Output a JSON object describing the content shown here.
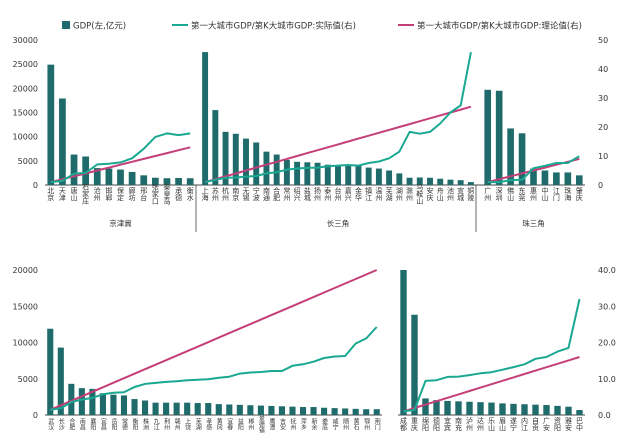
{
  "legend": [
    {
      "label": "GDP(左,亿元)",
      "color": "#1f6b6b",
      "kind": "bar"
    },
    {
      "label": "第一大城市GDP/第K大城市GDP:实际值(右)",
      "color": "#1aa892",
      "kind": "line"
    },
    {
      "label": "第一大城市GDP/第K大城市GDP:理论值(右)",
      "color": "#c43f78",
      "kind": "line"
    }
  ],
  "colors": {
    "bar": "#1f6b6b",
    "actual": "#1aa892",
    "theory": "#c43f78",
    "axis": "#444444",
    "text": "#333333"
  },
  "top_left_axis": {
    "ticks": [
      "0",
      "5000",
      "10000",
      "15000",
      "20000",
      "25000",
      "30000"
    ]
  },
  "top_right_axis": {
    "ticks": [
      "0",
      "10",
      "20",
      "30",
      "40",
      "50"
    ]
  },
  "bottom_left_axis": {
    "ticks": [
      "0",
      "5000",
      "10000",
      "15000",
      "20000"
    ]
  },
  "bottom_right_axis": {
    "ticks": [
      "0.0",
      "10.0",
      "20.0",
      "30.0",
      "40.0"
    ]
  },
  "chart_data": [
    {
      "type": "bar",
      "group": "京津冀",
      "categories": [
        "北京",
        "天津",
        "唐山",
        "石家庄",
        "沧州",
        "邯郸",
        "保定",
        "廊坊",
        "邢台",
        "张家口",
        "秦皇岛",
        "承德",
        "衡水"
      ],
      "ylim": [
        0,
        30000
      ],
      "y2lim": [
        0,
        50
      ],
      "series": [
        {
          "values": [
            24900,
            17900,
            6300,
            5900,
            3500,
            3400,
            3200,
            2700,
            2000,
            1500,
            1400,
            1450,
            1400
          ]
        },
        {
          "values": [
            1,
            1.4,
            3.9,
            4.2,
            7.1,
            7.3,
            7.8,
            9.2,
            12.5,
            16.6,
            17.8,
            17.2,
            17.8
          ]
        },
        {
          "values": [
            1,
            2,
            3,
            4,
            5,
            6,
            7,
            8,
            9,
            10,
            11,
            12,
            13
          ]
        }
      ]
    },
    {
      "type": "bar",
      "group": "长三角",
      "categories": [
        "上海",
        "苏州",
        "杭州",
        "南京",
        "无锡",
        "宁波",
        "南通",
        "合肥",
        "常州",
        "绍兴",
        "盐城",
        "扬州",
        "泰州",
        "台州",
        "嘉兴",
        "金华",
        "镇江",
        "温州",
        "芜湖",
        "湖州",
        "滁州",
        "马鞍山",
        "安庆",
        "舟山",
        "池州",
        "宣城",
        "铜陵"
      ],
      "ylim": [
        0,
        30000
      ],
      "y2lim": [
        0,
        50
      ],
      "series": [
        {
          "values": [
            27500,
            15500,
            11000,
            10600,
            9600,
            8800,
            6900,
            6300,
            5200,
            4800,
            4700,
            4600,
            4200,
            4100,
            4000,
            4100,
            3600,
            3400,
            3000,
            2400,
            1500,
            1550,
            1500,
            1300,
            1100,
            1000,
            600
          ]
        },
        {
          "values": [
            1,
            1.8,
            2.5,
            2.6,
            2.9,
            3.1,
            4,
            4.4,
            5.3,
            5.7,
            5.9,
            6,
            6.5,
            6.7,
            6.9,
            6.7,
            7.6,
            8.1,
            9.2,
            11.5,
            18.3,
            17.7,
            18.3,
            21.2,
            25,
            27.5,
            45.8
          ]
        },
        {
          "values": [
            1,
            2,
            3,
            4,
            5,
            6,
            7,
            8,
            9,
            10,
            11,
            12,
            13,
            14,
            15,
            16,
            17,
            18,
            19,
            20,
            21,
            22,
            23,
            24,
            25,
            26,
            27
          ]
        }
      ]
    },
    {
      "type": "bar",
      "group": "珠三角",
      "categories": [
        "广州",
        "深圳",
        "佛山",
        "东莞",
        "惠州",
        "中山",
        "江门",
        "珠海",
        "肇庆"
      ],
      "ylim": [
        0,
        30000
      ],
      "y2lim": [
        0,
        50
      ],
      "series": [
        {
          "values": [
            19700,
            19500,
            11700,
            10700,
            3400,
            3000,
            2600,
            2600,
            2000
          ]
        },
        {
          "values": [
            1,
            1.01,
            1.7,
            1.8,
            5.8,
            6.6,
            7.6,
            7.6,
            9.9
          ]
        },
        {
          "values": [
            1,
            2,
            3,
            4,
            5,
            6,
            7,
            8,
            9
          ]
        }
      ]
    },
    {
      "type": "bar",
      "categories": [
        "武汉",
        "长沙",
        "合肥",
        "南昌",
        "襄阳",
        "宜昌",
        "岳阳",
        "常德",
        "衡阳",
        "株洲",
        "九江",
        "荆州",
        "赣州",
        "上饶",
        "芜湖",
        "孝感",
        "黄冈",
        "宜春",
        "益阳",
        "郴州",
        "景德镇",
        "鹰潭",
        "吉安",
        "抚州",
        "萍乡",
        "新余",
        "娄底",
        "咸宁",
        "随州",
        "黄石",
        "鄂州",
        "荆门"
      ],
      "ylim": [
        0,
        20000
      ],
      "y2lim": [
        0,
        28
      ],
      "series": [
        {
          "values": [
            11900,
            9300,
            4300,
            3700,
            3600,
            3000,
            2800,
            2700,
            2200,
            2000,
            1700,
            1700,
            1700,
            1700,
            1650,
            1650,
            1500,
            1450,
            1400,
            1350,
            1300,
            1250,
            1200,
            1150,
            1100,
            1100,
            1000,
            950,
            900,
            850,
            800,
            800
          ]
        },
        {
          "values": [
            1,
            1.3,
            2.5,
            3,
            3.3,
            4,
            4.3,
            4.4,
            5.4,
            6,
            6.2,
            6.4,
            6.5,
            6.7,
            6.8,
            6.9,
            7.2,
            7.4,
            8,
            8.2,
            8.3,
            8.5,
            8.5,
            9.5,
            9.8,
            10.3,
            11,
            11.3,
            11.4,
            13.8,
            14.8,
            17
          ]
        },
        {
          "values": [
            1,
            1.87,
            2.74,
            3.61,
            4.48,
            5.35,
            6.23,
            7.1,
            7.97,
            8.84,
            9.71,
            10.58,
            11.45,
            12.32,
            13.19,
            14.06,
            14.94,
            15.81,
            16.68,
            17.55,
            18.42,
            19.29,
            20.16,
            21.03,
            21.9,
            22.77,
            23.65,
            24.52,
            25.39,
            26.26,
            27.13,
            28
          ]
        }
      ]
    },
    {
      "type": "bar",
      "categories": [
        "成都",
        "重庆",
        "绵阳",
        "德阳",
        "宜宾",
        "南充",
        "泸州",
        "达州",
        "乐山",
        "眉山",
        "遂宁",
        "内江",
        "自贡",
        "广安",
        "资阳",
        "雅安",
        "巴中"
      ],
      "ylim": [
        0,
        40
      ],
      "series": [
        {
          "values": [
            17500,
            12100,
            2000,
            1800,
            1700,
            1650,
            1600,
            1550,
            1500,
            1400,
            1350,
            1300,
            1250,
            1200,
            1100,
            1000,
            600
          ]
        },
        {
          "values": [
            1,
            1.4,
            9.4,
            9.6,
            10.5,
            10.6,
            11,
            11.5,
            11.8,
            12.5,
            13.2,
            14,
            15.5,
            16,
            17.5,
            18.5,
            32
          ]
        },
        {
          "values": [
            1,
            1.94,
            2.88,
            3.81,
            4.75,
            5.69,
            6.63,
            7.56,
            8.5,
            9.44,
            10.38,
            11.31,
            12.25,
            13.19,
            14.13,
            15.06,
            16
          ]
        }
      ]
    }
  ]
}
